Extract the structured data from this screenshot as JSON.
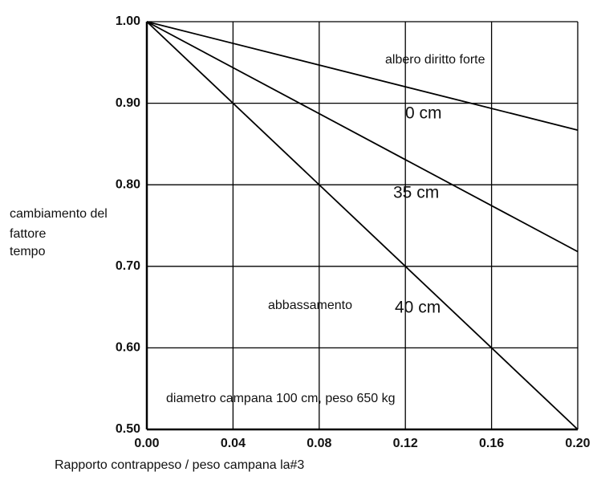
{
  "chart_data": {
    "type": "line",
    "x_label": "Rapporto contrappeso / peso campana la#3",
    "y_label": [
      "cambiamento del",
      "fattore",
      "tempo"
    ],
    "annotations": [
      "albero diritto forte",
      "abbassamento",
      "diametro campana 100 cm, peso 650 kg"
    ],
    "x": [
      0,
      0.2
    ],
    "series": [
      {
        "name": "0 cm",
        "color": "#000000",
        "values": [
          1.0,
          0.867
        ]
      },
      {
        "name": "35 cm",
        "color": "#000000",
        "values": [
          1.0,
          0.718
        ]
      },
      {
        "name": "40 cm",
        "color": "#000000",
        "values": [
          1.0,
          0.5
        ]
      }
    ],
    "xlim": [
      0,
      0.2
    ],
    "ylim": [
      0.5,
      1.0
    ],
    "xticks": [
      {
        "value": 0,
        "label": "0.00"
      },
      {
        "value": 0.04,
        "label": "0.04"
      },
      {
        "value": 0.08,
        "label": "0.08"
      },
      {
        "value": 0.12,
        "label": "0.12"
      },
      {
        "value": 0.16,
        "label": "0.16"
      },
      {
        "value": 0.2,
        "label": "0.20"
      }
    ],
    "yticks": [
      {
        "value": 0.5,
        "label": "0.50"
      },
      {
        "value": 0.6,
        "label": "0.60"
      },
      {
        "value": 0.7,
        "label": "0.70"
      },
      {
        "value": 0.8,
        "label": "0.80"
      },
      {
        "value": 0.9,
        "label": "0.90"
      },
      {
        "value": 1.0,
        "label": "1.00"
      }
    ],
    "grid": true
  }
}
